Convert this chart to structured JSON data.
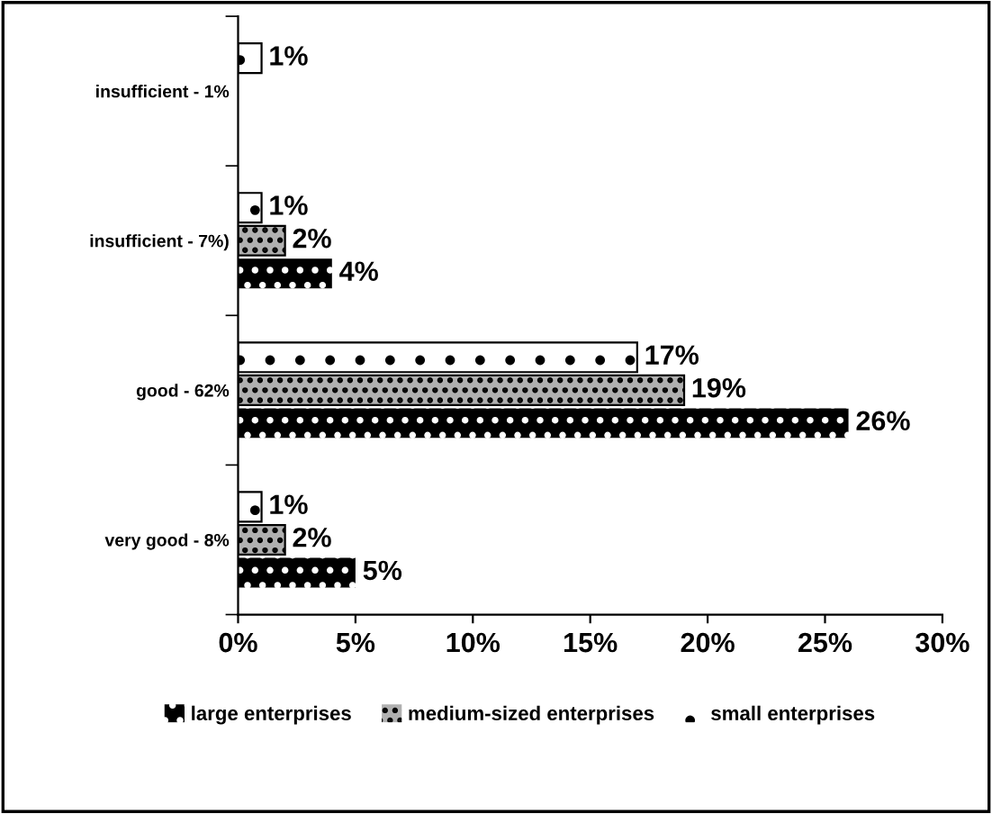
{
  "chart_data": {
    "type": "bar",
    "orientation": "horizontal",
    "categories": [
      "insufficient - 1%",
      "insufficient - 7%)",
      "good - 62%",
      "very good - 8%"
    ],
    "series": [
      {
        "name": "large enterprises",
        "color": "#000000",
        "values": [
          null,
          4,
          26,
          5
        ],
        "value_labels": [
          null,
          "4%",
          "26%",
          "5%"
        ]
      },
      {
        "name": "medium-sized enterprises",
        "color": "#b0b0b0",
        "values": [
          null,
          2,
          19,
          2
        ],
        "value_labels": [
          null,
          "2%",
          "19%",
          "2%"
        ]
      },
      {
        "name": "small enterprises",
        "color": "#ffffff",
        "values": [
          1,
          1,
          17,
          1
        ],
        "value_labels": [
          "1%",
          "1%",
          "17%",
          "1%"
        ]
      }
    ],
    "xlim": [
      0,
      30
    ],
    "xticks": [
      {
        "value": 0,
        "label": "0%"
      },
      {
        "value": 5,
        "label": "5%"
      },
      {
        "value": 10,
        "label": "10%"
      },
      {
        "value": 15,
        "label": "15%"
      },
      {
        "value": 20,
        "label": "20%"
      },
      {
        "value": 25,
        "label": "25%"
      },
      {
        "value": 30,
        "label": "30%"
      }
    ],
    "grid": false,
    "legend": "bottom"
  }
}
